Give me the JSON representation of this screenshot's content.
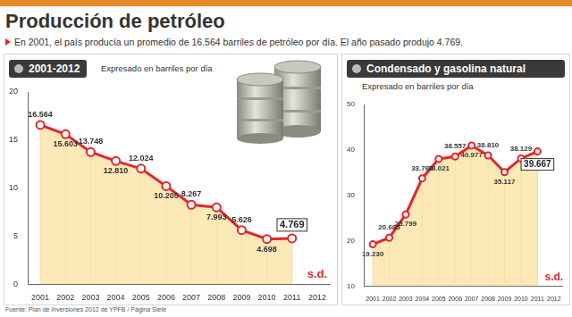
{
  "title": "Producción de petróleo",
  "subtitle": "En 2001, el país producía un promedio de 16.564 barriles de petróleo por día. El año pasado produjo 4.769.",
  "source": "Fuente: Plan de Inversiones 2012 de YPFB / Página Siete",
  "chart_data": [
    {
      "type": "area",
      "title": "2001-2012",
      "subtitle": "Expresado en barriles por día",
      "categories": [
        "2001",
        "2002",
        "2003",
        "2004",
        "2005",
        "2006",
        "2007",
        "2008",
        "2009",
        "2010",
        "2011",
        "2012"
      ],
      "values": [
        16.564,
        15.603,
        13.748,
        12.81,
        12.024,
        10.205,
        8.267,
        7.993,
        5.626,
        4.698,
        4.769,
        null
      ],
      "value_labels": [
        "16.564",
        "15.603",
        "13.748",
        "12.810",
        "12.024",
        "10.205",
        "8.267",
        "7.993",
        "5.626",
        "4.698",
        "4.769",
        "s.d."
      ],
      "color": "#e3262d",
      "marker": "circle",
      "data_labels": true,
      "grid": false,
      "ylim": [
        0,
        20
      ],
      "yticks": [
        0,
        5,
        10,
        15,
        20
      ]
    },
    {
      "type": "area",
      "title": "Condensado y gasolina natural",
      "subtitle": "Expresado en barriles por día",
      "categories": [
        "2001",
        "2002",
        "2003",
        "2004",
        "2005",
        "2006",
        "2007",
        "2008",
        "2009",
        "2010",
        "2011",
        "2012"
      ],
      "values": [
        19.23,
        20.685,
        25.799,
        33.76,
        38.021,
        38.557,
        40.977,
        38.81,
        35.117,
        38.129,
        39.667,
        null
      ],
      "value_labels": [
        "19.230",
        "20.685",
        "25.799",
        "33.760",
        "38.021",
        "38.557",
        "40.977",
        "38.810",
        "35.117",
        "38.129",
        "39.667",
        "s.d."
      ],
      "color": "#e3262d",
      "marker": "circle",
      "data_labels": true,
      "grid": false,
      "ylim": [
        10,
        50
      ],
      "yticks": [
        10,
        20,
        30,
        40,
        50
      ]
    }
  ]
}
